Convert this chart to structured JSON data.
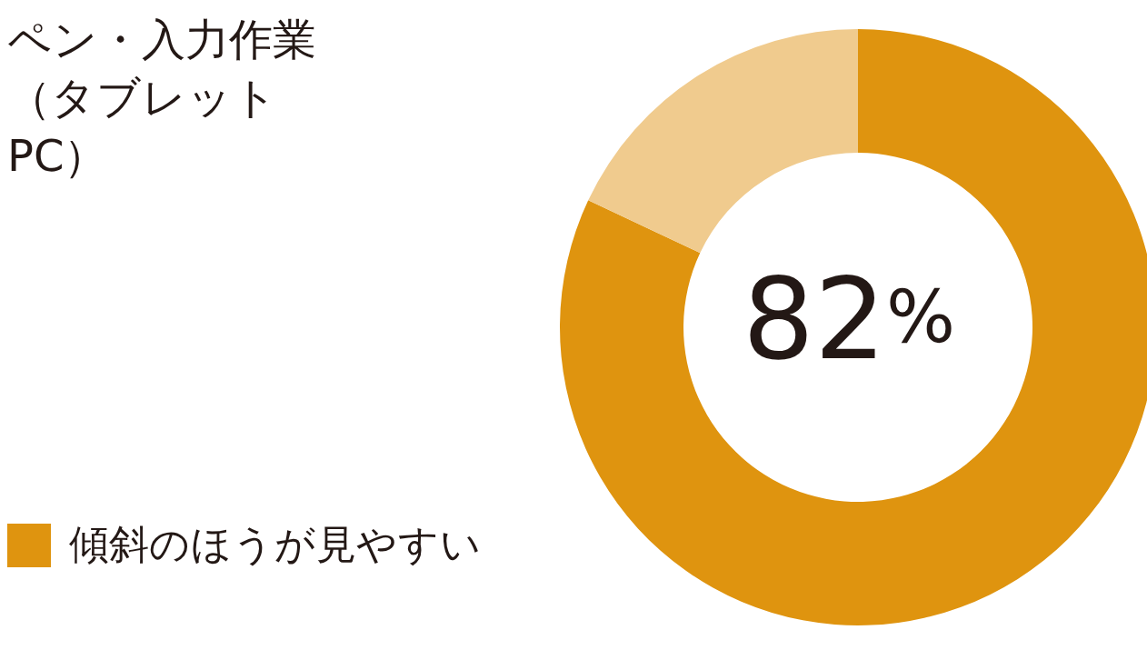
{
  "chart_data": {
    "type": "donut",
    "title": "ペン・入力作業（タブレットPC）",
    "categories": [
      "傾斜のほうが見やすい",
      null
    ],
    "values": [
      82,
      18
    ],
    "colors": [
      "#df940f",
      "#f0cb8e"
    ],
    "annotations": [
      "82%"
    ],
    "legend": "bottom left"
  }
}
